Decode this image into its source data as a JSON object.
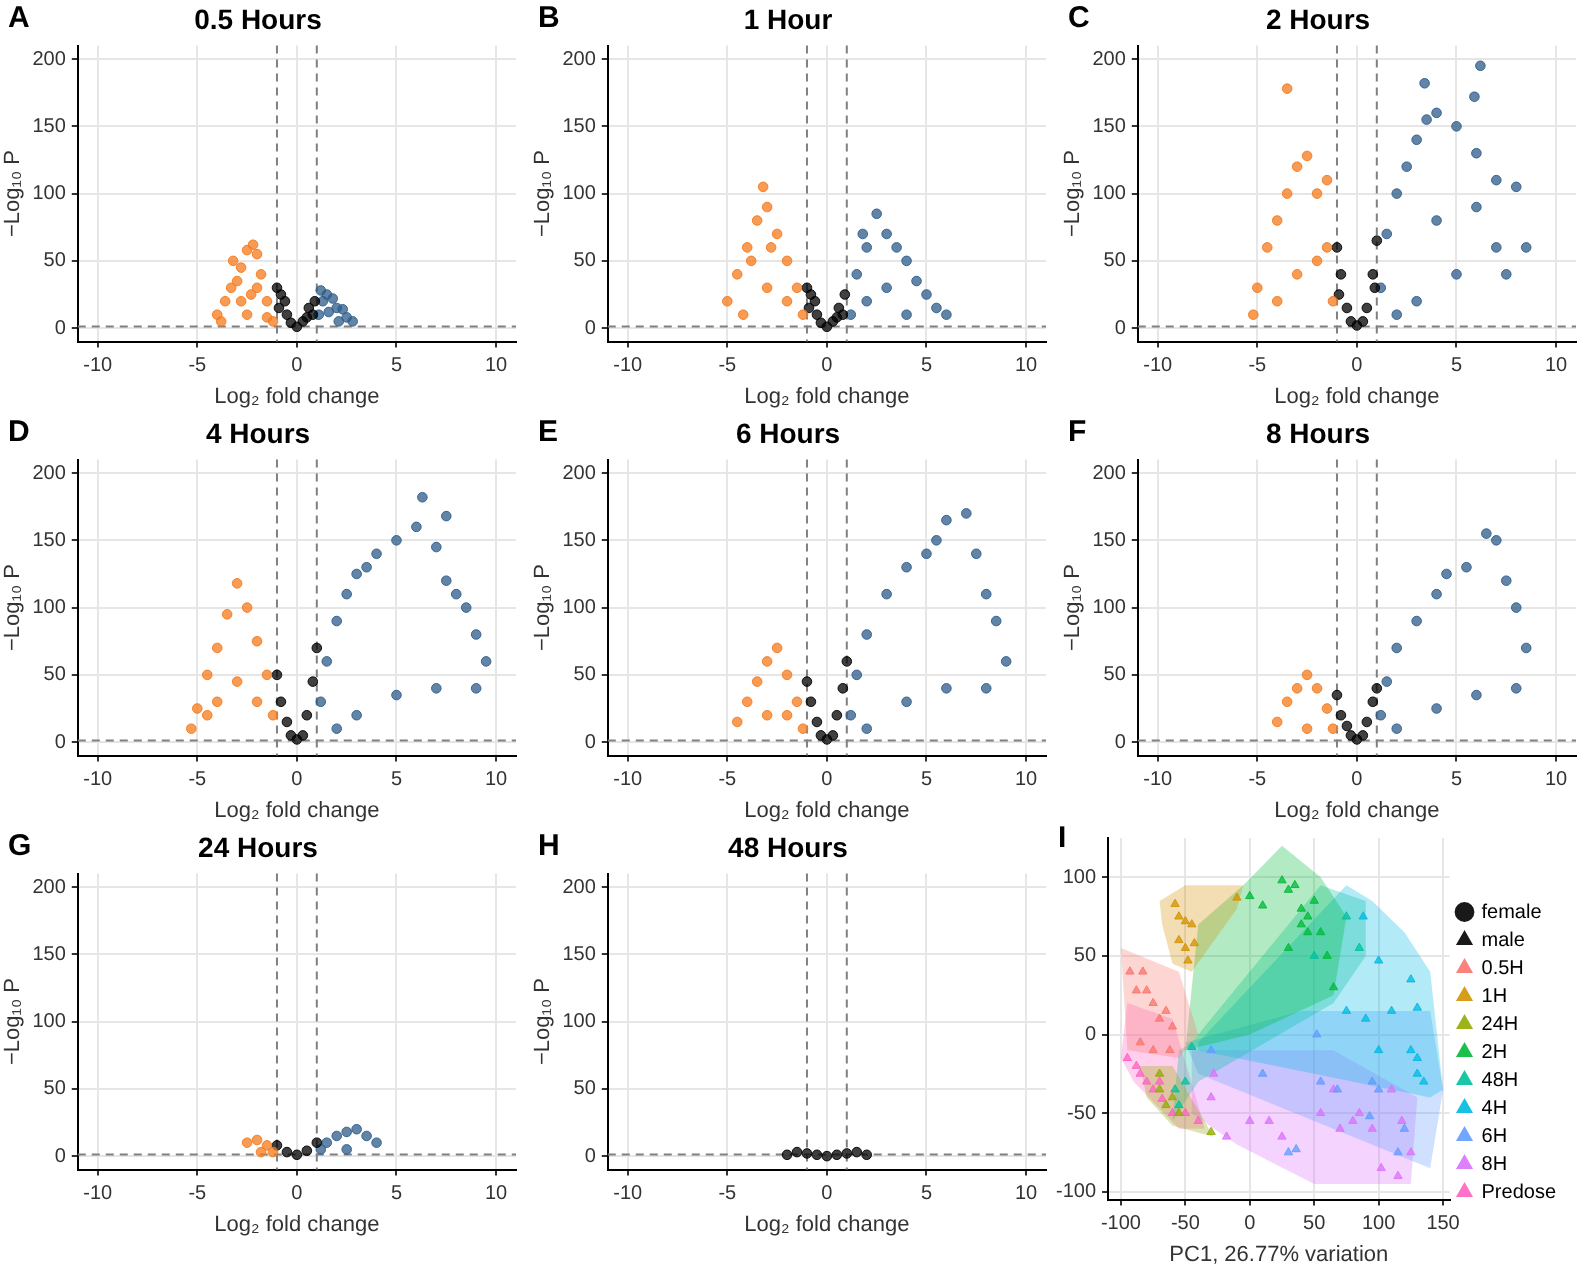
{
  "chart_data": [
    {
      "type": "scatter",
      "title": "0.5 Hours",
      "annotations": [
        "A"
      ],
      "xlabel": "Log₂ fold change",
      "ylabel": "−Log₁₀ P",
      "xlim": [
        -11,
        11
      ],
      "ylim": [
        -10,
        210
      ],
      "xticks": [
        -10,
        -5,
        0,
        5,
        10
      ],
      "yticks": [
        0,
        50,
        100,
        150,
        200
      ],
      "grid": true,
      "marker": "circle",
      "ref_lines": [
        {
          "axis": "x",
          "value": -1,
          "line_style": "dashed",
          "color": "#808080"
        },
        {
          "axis": "x",
          "value": 1,
          "line_style": "dashed",
          "color": "#808080"
        },
        {
          "axis": "y",
          "value": 1.3,
          "line_style": "dashed",
          "color": "#808080"
        }
      ],
      "series": [
        {
          "color": "#f57a1c",
          "x": [
            -1.2,
            -1.5,
            -1.8,
            -2,
            -2.2,
            -2.5,
            -2.8,
            -3,
            -3.3,
            -3.6,
            -4,
            -3.8,
            -2.5,
            -2,
            -1.5,
            -2.8,
            -3.2,
            -2.3
          ],
          "values": [
            5,
            20,
            40,
            55,
            62,
            58,
            45,
            35,
            30,
            20,
            10,
            5,
            10,
            30,
            8,
            20,
            50,
            25
          ]
        },
        {
          "color": "#000000",
          "x": [
            -1,
            -0.8,
            -0.5,
            -0.3,
            0,
            0.3,
            0.6,
            0.9,
            -0.9,
            0.5,
            -0.6,
            0.8
          ],
          "values": [
            30,
            25,
            10,
            4,
            1,
            5,
            15,
            20,
            15,
            8,
            20,
            10
          ]
        },
        {
          "color": "#2e5c8a",
          "x": [
            1.1,
            1.3,
            1.5,
            1.8,
            2,
            2.3,
            2.5,
            2.8,
            1.2,
            1.6,
            2.1
          ],
          "values": [
            10,
            20,
            25,
            22,
            15,
            14,
            8,
            5,
            28,
            12,
            5
          ]
        }
      ]
    },
    {
      "type": "scatter",
      "title": "1 Hour",
      "annotations": [
        "B"
      ],
      "xlabel": "Log₂ fold change",
      "ylabel": "−Log₁₀ P",
      "xlim": [
        -11,
        11
      ],
      "ylim": [
        -10,
        210
      ],
      "xticks": [
        -10,
        -5,
        0,
        5,
        10
      ],
      "yticks": [
        0,
        50,
        100,
        150,
        200
      ],
      "grid": true,
      "marker": "circle",
      "ref_lines": [
        {
          "axis": "x",
          "value": -1,
          "line_style": "dashed",
          "color": "#808080"
        },
        {
          "axis": "x",
          "value": 1,
          "line_style": "dashed",
          "color": "#808080"
        },
        {
          "axis": "y",
          "value": 1.3,
          "line_style": "dashed",
          "color": "#808080"
        }
      ],
      "series": [
        {
          "color": "#f57a1c",
          "x": [
            -1.2,
            -1.5,
            -2,
            -2.5,
            -3,
            -3.2,
            -3.5,
            -4,
            -4.5,
            -5,
            -4.2,
            -3,
            -2,
            -3.8,
            -2.8
          ],
          "values": [
            10,
            30,
            50,
            70,
            90,
            105,
            80,
            60,
            40,
            20,
            10,
            30,
            20,
            50,
            60
          ]
        },
        {
          "color": "#000000",
          "x": [
            -1,
            -0.8,
            -0.5,
            -0.3,
            0,
            0.3,
            0.6,
            0.9,
            -0.9,
            0.5,
            -0.6,
            0.8
          ],
          "values": [
            30,
            25,
            10,
            4,
            1,
            5,
            15,
            25,
            15,
            8,
            20,
            10
          ]
        },
        {
          "color": "#2e5c8a",
          "x": [
            1.2,
            1.5,
            2,
            2.5,
            3,
            3.5,
            4,
            4.5,
            5,
            5.5,
            6,
            3,
            2,
            4,
            1.8
          ],
          "values": [
            10,
            40,
            60,
            85,
            70,
            60,
            50,
            35,
            25,
            15,
            10,
            30,
            20,
            10,
            70
          ]
        }
      ]
    },
    {
      "type": "scatter",
      "title": "2 Hours",
      "annotations": [
        "C"
      ],
      "xlabel": "Log₂ fold change",
      "ylabel": "−Log₁₀ P",
      "xlim": [
        -11,
        11
      ],
      "ylim": [
        -10,
        210
      ],
      "xticks": [
        -10,
        -5,
        0,
        5,
        10
      ],
      "yticks": [
        0,
        50,
        100,
        150,
        200
      ],
      "grid": true,
      "marker": "circle",
      "ref_lines": [
        {
          "axis": "x",
          "value": -1,
          "line_style": "dashed",
          "color": "#808080"
        },
        {
          "axis": "x",
          "value": 1,
          "line_style": "dashed",
          "color": "#808080"
        },
        {
          "axis": "y",
          "value": 1.3,
          "line_style": "dashed",
          "color": "#808080"
        }
      ],
      "series": [
        {
          "color": "#f57a1c",
          "x": [
            -1.2,
            -1.5,
            -2,
            -2.5,
            -3,
            -3.5,
            -4,
            -4.5,
            -5,
            -5.2,
            -4,
            -3,
            -2,
            -3.5,
            -1.5
          ],
          "values": [
            20,
            60,
            100,
            128,
            120,
            100,
            80,
            60,
            30,
            10,
            20,
            40,
            50,
            178,
            110
          ]
        },
        {
          "color": "#000000",
          "x": [
            -1,
            -0.8,
            -0.5,
            0,
            0.5,
            0.8,
            1,
            -0.3,
            0.3,
            -0.9,
            0.9
          ],
          "values": [
            60,
            40,
            15,
            2,
            15,
            40,
            65,
            5,
            5,
            25,
            30
          ]
        },
        {
          "color": "#2e5c8a",
          "x": [
            1.2,
            1.5,
            2,
            2.5,
            3,
            3.5,
            4,
            5,
            6,
            7,
            8,
            8.5,
            7,
            5,
            3,
            6.2,
            3.4,
            5.9,
            2,
            4,
            6,
            7.5
          ],
          "values": [
            30,
            70,
            100,
            120,
            140,
            155,
            160,
            150,
            130,
            110,
            105,
            60,
            60,
            40,
            20,
            195,
            182,
            172,
            10,
            80,
            90,
            40
          ]
        }
      ]
    },
    {
      "type": "scatter",
      "title": "4 Hours",
      "annotations": [
        "D"
      ],
      "xlabel": "Log₂ fold change",
      "ylabel": "−Log₁₀ P",
      "xlim": [
        -11,
        11
      ],
      "ylim": [
        -10,
        210
      ],
      "xticks": [
        -10,
        -5,
        0,
        5,
        10
      ],
      "yticks": [
        0,
        50,
        100,
        150,
        200
      ],
      "grid": true,
      "marker": "circle",
      "ref_lines": [
        {
          "axis": "x",
          "value": -1,
          "line_style": "dashed",
          "color": "#808080"
        },
        {
          "axis": "x",
          "value": 1,
          "line_style": "dashed",
          "color": "#808080"
        },
        {
          "axis": "y",
          "value": 1.3,
          "line_style": "dashed",
          "color": "#808080"
        }
      ],
      "series": [
        {
          "color": "#f57a1c",
          "x": [
            -1.2,
            -1.5,
            -2,
            -2.5,
            -3,
            -3.5,
            -4,
            -4.5,
            -5,
            -5.3,
            -4,
            -3,
            -2,
            -4.5
          ],
          "values": [
            20,
            50,
            75,
            100,
            118,
            95,
            70,
            50,
            25,
            10,
            30,
            45,
            30,
            20
          ]
        },
        {
          "color": "#000000",
          "x": [
            -1,
            -0.5,
            0,
            0.5,
            1,
            -0.8,
            0.8,
            0.3,
            -0.3
          ],
          "values": [
            50,
            15,
            2,
            20,
            70,
            30,
            45,
            5,
            5
          ]
        },
        {
          "color": "#2e5c8a",
          "x": [
            1.2,
            1.5,
            2,
            2.5,
            3,
            3.5,
            4,
            5,
            6,
            6.3,
            7.5,
            7,
            7.5,
            8,
            8.5,
            9,
            9.5,
            9,
            7,
            5,
            3,
            2
          ],
          "values": [
            30,
            60,
            90,
            110,
            125,
            130,
            140,
            150,
            160,
            182,
            168,
            145,
            120,
            110,
            100,
            80,
            60,
            40,
            40,
            35,
            20,
            10
          ]
        }
      ]
    },
    {
      "type": "scatter",
      "title": "6 Hours",
      "annotations": [
        "E"
      ],
      "xlabel": "Log₂ fold change",
      "ylabel": "−Log₁₀ P",
      "xlim": [
        -11,
        11
      ],
      "ylim": [
        -10,
        210
      ],
      "xticks": [
        -10,
        -5,
        0,
        5,
        10
      ],
      "yticks": [
        0,
        50,
        100,
        150,
        200
      ],
      "grid": true,
      "marker": "circle",
      "ref_lines": [
        {
          "axis": "x",
          "value": -1,
          "line_style": "dashed",
          "color": "#808080"
        },
        {
          "axis": "x",
          "value": 1,
          "line_style": "dashed",
          "color": "#808080"
        },
        {
          "axis": "y",
          "value": 1.3,
          "line_style": "dashed",
          "color": "#808080"
        }
      ],
      "series": [
        {
          "color": "#f57a1c",
          "x": [
            -1.2,
            -1.5,
            -2,
            -2.5,
            -3,
            -3.5,
            -4,
            -4.5,
            -3,
            -2
          ],
          "values": [
            10,
            30,
            50,
            70,
            60,
            45,
            30,
            15,
            20,
            20
          ]
        },
        {
          "color": "#000000",
          "x": [
            -1,
            -0.5,
            0,
            0.5,
            1,
            -0.8,
            0.8,
            0.3,
            -0.3
          ],
          "values": [
            45,
            15,
            2,
            20,
            60,
            30,
            40,
            5,
            5
          ]
        },
        {
          "color": "#2e5c8a",
          "x": [
            1.2,
            1.5,
            2,
            3,
            4,
            5,
            5.5,
            6,
            7,
            7.5,
            8,
            8.5,
            9,
            8,
            6,
            4,
            2
          ],
          "values": [
            20,
            50,
            80,
            110,
            130,
            140,
            150,
            165,
            170,
            140,
            110,
            90,
            60,
            40,
            40,
            30,
            10
          ]
        }
      ]
    },
    {
      "type": "scatter",
      "title": "8 Hours",
      "annotations": [
        "F"
      ],
      "xlabel": "Log₂ fold change",
      "ylabel": "−Log₁₀ P",
      "xlim": [
        -11,
        11
      ],
      "ylim": [
        -10,
        210
      ],
      "xticks": [
        -10,
        -5,
        0,
        5,
        10
      ],
      "yticks": [
        0,
        50,
        100,
        150,
        200
      ],
      "grid": true,
      "marker": "circle",
      "ref_lines": [
        {
          "axis": "x",
          "value": -1,
          "line_style": "dashed",
          "color": "#808080"
        },
        {
          "axis": "x",
          "value": 1,
          "line_style": "dashed",
          "color": "#808080"
        },
        {
          "axis": "y",
          "value": 1.3,
          "line_style": "dashed",
          "color": "#808080"
        }
      ],
      "series": [
        {
          "color": "#f57a1c",
          "x": [
            -1.2,
            -1.5,
            -2,
            -2.5,
            -3,
            -3.5,
            -4,
            -2.5
          ],
          "values": [
            10,
            25,
            40,
            50,
            40,
            30,
            15,
            10
          ]
        },
        {
          "color": "#000000",
          "x": [
            -1,
            -0.5,
            0,
            0.5,
            1,
            -0.8,
            0.8,
            0.3,
            -0.3
          ],
          "values": [
            35,
            12,
            2,
            15,
            40,
            20,
            30,
            5,
            5
          ]
        },
        {
          "color": "#2e5c8a",
          "x": [
            1.2,
            1.5,
            2,
            3,
            4,
            4.5,
            5.5,
            6.5,
            7,
            7.5,
            8,
            8.5,
            8,
            6,
            4,
            2
          ],
          "values": [
            20,
            45,
            70,
            90,
            110,
            125,
            130,
            155,
            150,
            120,
            100,
            70,
            40,
            35,
            25,
            10
          ]
        }
      ]
    },
    {
      "type": "scatter",
      "title": "24 Hours",
      "annotations": [
        "G"
      ],
      "xlabel": "Log₂ fold change",
      "ylabel": "−Log₁₀ P",
      "xlim": [
        -11,
        11
      ],
      "ylim": [
        -10,
        210
      ],
      "xticks": [
        -10,
        -5,
        0,
        5,
        10
      ],
      "yticks": [
        0,
        50,
        100,
        150,
        200
      ],
      "grid": true,
      "marker": "circle",
      "ref_lines": [
        {
          "axis": "x",
          "value": -1,
          "line_style": "dashed",
          "color": "#808080"
        },
        {
          "axis": "x",
          "value": 1,
          "line_style": "dashed",
          "color": "#808080"
        },
        {
          "axis": "y",
          "value": 1.3,
          "line_style": "dashed",
          "color": "#808080"
        }
      ],
      "series": [
        {
          "color": "#f57a1c",
          "x": [
            -1.2,
            -1.5,
            -2,
            -2.5,
            -1.8
          ],
          "values": [
            3,
            8,
            12,
            10,
            3
          ]
        },
        {
          "color": "#000000",
          "x": [
            -1,
            -0.5,
            0,
            0.5,
            1
          ],
          "values": [
            8,
            3,
            1,
            4,
            10
          ]
        },
        {
          "color": "#2e5c8a",
          "x": [
            1.2,
            1.5,
            2,
            2.5,
            3,
            3.5,
            4,
            2.5
          ],
          "values": [
            5,
            10,
            15,
            18,
            20,
            15,
            10,
            5
          ]
        }
      ]
    },
    {
      "type": "scatter",
      "title": "48 Hours",
      "annotations": [
        "H"
      ],
      "xlabel": "Log₂ fold change",
      "ylabel": "−Log₁₀ P",
      "xlim": [
        -11,
        11
      ],
      "ylim": [
        -10,
        210
      ],
      "xticks": [
        -10,
        -5,
        0,
        5,
        10
      ],
      "yticks": [
        0,
        50,
        100,
        150,
        200
      ],
      "grid": true,
      "marker": "circle",
      "ref_lines": [
        {
          "axis": "x",
          "value": -1,
          "line_style": "dashed",
          "color": "#808080"
        },
        {
          "axis": "x",
          "value": 1,
          "line_style": "dashed",
          "color": "#808080"
        },
        {
          "axis": "y",
          "value": 1.3,
          "line_style": "dashed",
          "color": "#808080"
        }
      ],
      "series": [
        {
          "color": "#000000",
          "x": [
            -2,
            -1.5,
            -1,
            -0.5,
            0,
            0.5,
            1,
            1.5,
            2
          ],
          "values": [
            1,
            3,
            2,
            1,
            0,
            1,
            2,
            3,
            1
          ]
        }
      ]
    },
    {
      "type": "scatter",
      "annotations": [
        "I"
      ],
      "xlabel": "PC1, 26.77% variation",
      "xlim": [
        -110,
        155
      ],
      "ylim": [
        -105,
        125
      ],
      "xticks": [
        -100,
        -50,
        0,
        50,
        100,
        150
      ],
      "yticks": [
        -100,
        -50,
        0,
        50,
        100
      ],
      "grid": true,
      "legend": "right",
      "marker": "triangle",
      "series": [
        {
          "type": "area",
          "marker": "none",
          "color": "#f8766d",
          "x": [
            -100,
            -55,
            -40,
            -55,
            -95,
            -100
          ],
          "values": [
            55,
            40,
            0,
            -15,
            -10,
            55
          ]
        },
        {
          "type": "area",
          "marker": "none",
          "color": "#d39200",
          "x": [
            -70,
            -50,
            -5,
            -10,
            -45,
            -60,
            -68,
            -70
          ],
          "values": [
            85,
            95,
            95,
            80,
            40,
            45,
            70,
            85
          ]
        },
        {
          "type": "area",
          "marker": "none",
          "color": "#93aa00",
          "x": [
            -85,
            -60,
            -28,
            -60,
            -80,
            -85
          ],
          "values": [
            -20,
            -20,
            -65,
            -58,
            -40,
            -20
          ]
        },
        {
          "type": "area",
          "marker": "none",
          "color": "#00ba38",
          "x": [
            -50,
            -40,
            -5,
            25,
            55,
            75,
            65,
            0,
            -50
          ],
          "values": [
            -10,
            70,
            95,
            120,
            100,
            75,
            25,
            0,
            -10
          ]
        },
        {
          "type": "area",
          "marker": "none",
          "color": "#00c19f",
          "x": [
            -55,
            -45,
            55,
            90,
            90,
            65,
            -40,
            -60,
            -55
          ],
          "values": [
            -10,
            -5,
            95,
            85,
            50,
            20,
            -30,
            -55,
            -10
          ]
        },
        {
          "type": "area",
          "marker": "none",
          "color": "#00b9e3",
          "x": [
            -40,
            75,
            95,
            120,
            140,
            150,
            140,
            -40,
            -40
          ],
          "values": [
            -5,
            95,
            85,
            65,
            40,
            -35,
            -40,
            -10,
            -5
          ]
        },
        {
          "type": "area",
          "marker": "none",
          "color": "#619cff",
          "x": [
            -50,
            40,
            140,
            150,
            140,
            -40,
            -50
          ],
          "values": [
            -5,
            15,
            15,
            -35,
            -85,
            -25,
            -5
          ]
        },
        {
          "type": "area",
          "marker": "none",
          "color": "#db72fb",
          "x": [
            -45,
            65,
            130,
            125,
            50,
            -10,
            -45,
            -45
          ],
          "values": [
            -10,
            -10,
            -40,
            -95,
            -95,
            -70,
            -50,
            -10
          ]
        },
        {
          "type": "area",
          "marker": "none",
          "color": "#ff61c3",
          "x": [
            -100,
            -95,
            -60,
            -40,
            -35,
            -55,
            -90,
            -100
          ],
          "values": [
            -15,
            20,
            10,
            -45,
            -60,
            -60,
            -30,
            -15
          ]
        },
        {
          "name": "female",
          "marker": "circle",
          "color": "#000000"
        },
        {
          "name": "male",
          "marker": "triangle",
          "color": "#000000"
        },
        {
          "name": "0.5H",
          "color": "#f8766d",
          "x": [
            -93,
            -88,
            -83,
            -80,
            -75,
            -70,
            -65,
            -60,
            -85,
            -75,
            -62
          ],
          "values": [
            40,
            28,
            40,
            28,
            20,
            10,
            15,
            5,
            -5,
            -10,
            -10
          ]
        },
        {
          "name": "1H",
          "color": "#d39200",
          "x": [
            -58,
            -55,
            -50,
            -45,
            -55,
            -50,
            -48,
            -43,
            -10
          ],
          "values": [
            83,
            75,
            72,
            70,
            60,
            55,
            47,
            58,
            87
          ]
        },
        {
          "name": "24H",
          "color": "#93aa00",
          "x": [
            -70,
            -65,
            -60,
            -70,
            -30,
            -55
          ],
          "values": [
            -35,
            -45,
            -40,
            -25,
            -62,
            -50
          ]
        },
        {
          "name": "2H",
          "color": "#00ba38",
          "x": [
            0,
            10,
            25,
            30,
            35,
            40,
            45,
            50,
            45,
            55,
            60,
            65,
            30,
            40
          ],
          "values": [
            88,
            82,
            98,
            92,
            95,
            80,
            75,
            85,
            65,
            65,
            50,
            30,
            55,
            70
          ]
        },
        {
          "name": "48H",
          "color": "#00c19f",
          "x": [
            -45,
            -58,
            -55,
            75,
            85,
            50,
            -50
          ],
          "values": [
            -8,
            -35,
            -45,
            75,
            55,
            50,
            -30
          ]
        },
        {
          "name": "4H",
          "color": "#00b9e3",
          "x": [
            100,
            125,
            130,
            110,
            125,
            130,
            130,
            135,
            88,
            75,
            100,
            90
          ],
          "values": [
            47,
            35,
            17,
            15,
            -10,
            -15,
            -25,
            -30,
            75,
            15,
            -10,
            10
          ]
        },
        {
          "name": "6H",
          "color": "#619cff",
          "x": [
            52,
            55,
            68,
            95,
            100,
            10,
            -30,
            30,
            36,
            115,
            120,
            93
          ],
          "values": [
            0,
            -30,
            -35,
            -30,
            -35,
            -25,
            -10,
            -75,
            -73,
            -75,
            -60,
            -52
          ]
        },
        {
          "name": "8H",
          "color": "#db72fb",
          "x": [
            -28,
            -30,
            0,
            15,
            25,
            55,
            65,
            70,
            85,
            95,
            102,
            80,
            110,
            118,
            125,
            115,
            -18
          ],
          "values": [
            -25,
            -40,
            -55,
            -55,
            -65,
            -50,
            -35,
            -60,
            -50,
            -60,
            -85,
            -55,
            -35,
            -55,
            -75,
            -90,
            -65
          ]
        },
        {
          "name": "Predose",
          "color": "#ff61c3",
          "x": [
            -95,
            -88,
            -85,
            -80,
            -75,
            -70,
            -68,
            -60,
            -50,
            -40
          ],
          "values": [
            -15,
            -20,
            -25,
            -30,
            -35,
            -30,
            -41,
            -50,
            -50,
            -55
          ]
        }
      ]
    }
  ]
}
